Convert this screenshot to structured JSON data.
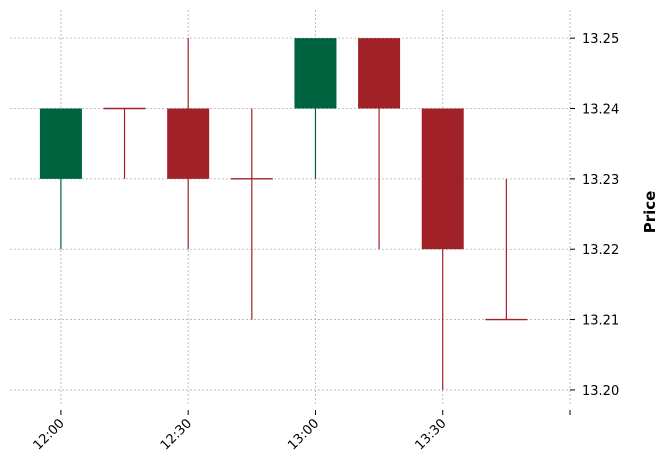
{
  "chart_data": {
    "type": "candlestick",
    "ylabel": "Price",
    "ylim": [
      13.198,
      13.254
    ],
    "y_ticks": [
      "13.20",
      "13.21",
      "13.22",
      "13.23",
      "13.24",
      "13.25"
    ],
    "x_ticks": [
      "12:00",
      "12:30",
      "13:00",
      "13:30",
      ""
    ],
    "x_tick_positions": [
      0,
      2,
      4,
      6,
      8
    ],
    "xlim": [
      -0.8,
      8.0
    ],
    "grid": true,
    "colors": {
      "up": "#006340",
      "down": "#A02128",
      "grid": "#b0b0b0"
    },
    "candles": [
      {
        "time": "12:00",
        "open": 13.23,
        "high": 13.24,
        "low": 13.22,
        "close": 13.24
      },
      {
        "time": "12:15",
        "open": 13.24,
        "high": 13.24,
        "low": 13.23,
        "close": 13.24
      },
      {
        "time": "12:30",
        "open": 13.24,
        "high": 13.25,
        "low": 13.22,
        "close": 13.23
      },
      {
        "time": "12:45",
        "open": 13.23,
        "high": 13.24,
        "low": 13.21,
        "close": 13.23
      },
      {
        "time": "13:00",
        "open": 13.24,
        "high": 13.25,
        "low": 13.23,
        "close": 13.25
      },
      {
        "time": "13:15",
        "open": 13.25,
        "high": 13.25,
        "low": 13.22,
        "close": 13.24
      },
      {
        "time": "13:30",
        "open": 13.24,
        "high": 13.24,
        "low": 13.2,
        "close": 13.22
      },
      {
        "time": "13:45",
        "open": 13.21,
        "high": 13.23,
        "low": 13.21,
        "close": 13.21
      }
    ]
  }
}
